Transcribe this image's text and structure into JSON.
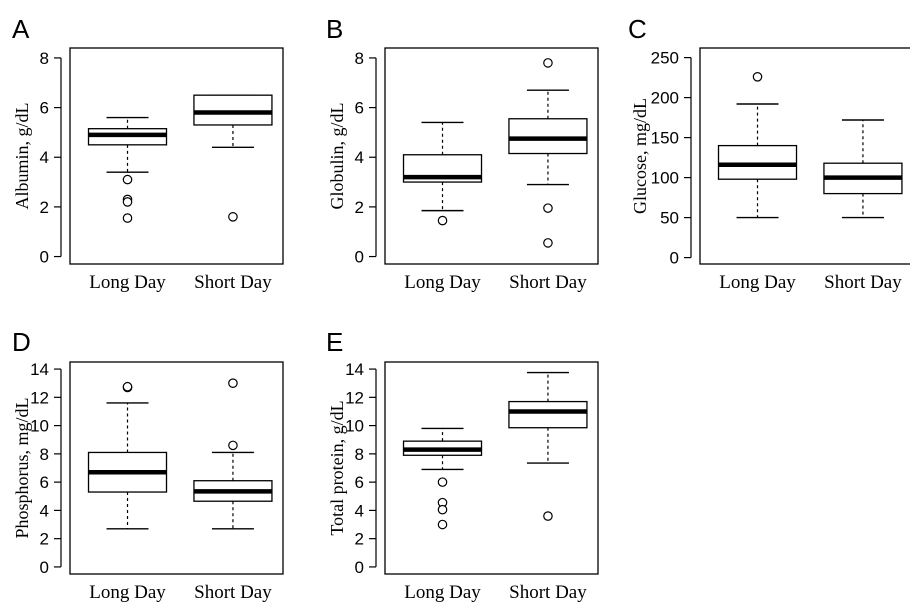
{
  "chart_data": [
    {
      "type": "box",
      "panel": "A",
      "ylabel": "Albumin, g/dL",
      "categories": [
        "Long Day",
        "Short Day"
      ],
      "ylim": [
        -0.3,
        8.4
      ],
      "yticks": [
        0,
        2,
        4,
        6,
        8
      ],
      "boxes": [
        {
          "category": "Long Day",
          "whisker_low": 3.4,
          "q1": 4.5,
          "median": 4.9,
          "q3": 5.15,
          "whisker_high": 5.6,
          "outliers": [
            3.1,
            2.3,
            2.2,
            1.55
          ]
        },
        {
          "category": "Short Day",
          "whisker_low": 4.4,
          "q1": 5.3,
          "median": 5.8,
          "q3": 6.5,
          "whisker_high": 6.5,
          "outliers": [
            1.6
          ]
        }
      ]
    },
    {
      "type": "box",
      "panel": "B",
      "ylabel": "Globulin, g/dL",
      "categories": [
        "Long Day",
        "Short Day"
      ],
      "ylim": [
        -0.3,
        8.4
      ],
      "yticks": [
        0,
        2,
        4,
        6,
        8
      ],
      "boxes": [
        {
          "category": "Long Day",
          "whisker_low": 1.85,
          "q1": 3.0,
          "median": 3.2,
          "q3": 4.1,
          "whisker_high": 5.4,
          "outliers": [
            1.45
          ]
        },
        {
          "category": "Short Day",
          "whisker_low": 2.9,
          "q1": 4.15,
          "median": 4.75,
          "q3": 5.55,
          "whisker_high": 6.7,
          "outliers": [
            7.8,
            1.95,
            0.55
          ]
        }
      ]
    },
    {
      "type": "box",
      "panel": "C",
      "ylabel": "Glucose, mg/dL",
      "categories": [
        "Long Day",
        "Short Day"
      ],
      "ylim": [
        -8,
        262
      ],
      "yticks": [
        0,
        50,
        100,
        150,
        200,
        250
      ],
      "boxes": [
        {
          "category": "Long Day",
          "whisker_low": 50,
          "q1": 98,
          "median": 116,
          "q3": 140,
          "whisker_high": 192,
          "outliers": [
            226
          ]
        },
        {
          "category": "Short Day",
          "whisker_low": 50,
          "q1": 80,
          "median": 100,
          "q3": 118,
          "whisker_high": 172,
          "outliers": []
        }
      ]
    },
    {
      "type": "box",
      "panel": "D",
      "ylabel": "Phosphorus, mg/dL",
      "categories": [
        "Long Day",
        "Short Day"
      ],
      "ylim": [
        -0.5,
        14.5
      ],
      "yticks": [
        0,
        2,
        4,
        6,
        8,
        10,
        12,
        14
      ],
      "boxes": [
        {
          "category": "Long Day",
          "whisker_low": 2.7,
          "q1": 5.3,
          "median": 6.7,
          "q3": 8.1,
          "whisker_high": 11.6,
          "outliers": [
            12.7,
            12.75
          ]
        },
        {
          "category": "Short Day",
          "whisker_low": 2.7,
          "q1": 4.65,
          "median": 5.35,
          "q3": 6.1,
          "whisker_high": 8.1,
          "outliers": [
            8.6,
            13.0
          ]
        }
      ]
    },
    {
      "type": "box",
      "panel": "E",
      "ylabel": "Total protein, g/dL",
      "categories": [
        "Long Day",
        "Short Day"
      ],
      "ylim": [
        -0.5,
        14.5
      ],
      "yticks": [
        0,
        2,
        4,
        6,
        8,
        10,
        12,
        14
      ],
      "boxes": [
        {
          "category": "Long Day",
          "whisker_low": 6.9,
          "q1": 7.9,
          "median": 8.3,
          "q3": 8.9,
          "whisker_high": 9.8,
          "outliers": [
            6.0,
            4.55,
            4.05,
            3.0
          ]
        },
        {
          "category": "Short Day",
          "whisker_low": 7.35,
          "q1": 9.85,
          "median": 11.0,
          "q3": 11.7,
          "whisker_high": 13.75,
          "outliers": [
            3.6
          ]
        }
      ]
    }
  ]
}
